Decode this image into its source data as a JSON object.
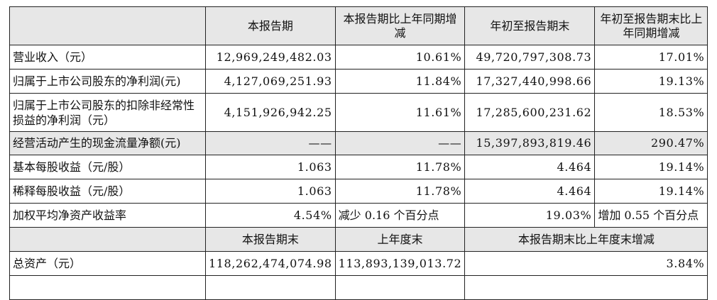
{
  "header1": {
    "col1": "本报告期",
    "col2": "本报告期比上年同期增减",
    "col3": "年初至报告期末",
    "col4": "年初至报告期末比上年同期增减"
  },
  "rows": [
    {
      "label": "营业收入（元）",
      "v1": "12,969,249,482.03",
      "v2": "10.61%",
      "v3": "49,720,797,308.73",
      "v4": "17.01%"
    },
    {
      "label": "归属于上市公司股东的净利润(元)",
      "v1": "4,127,069,251.93",
      "v2": "11.84%",
      "v3": "17,327,440,998.66",
      "v4": "19.13%"
    },
    {
      "label": "归属于上市公司股东的扣除非经常性损益的净利润（元）",
      "v1": "4,151,926,942.25",
      "v2": "11.61%",
      "v3": "17,285,600,231.62",
      "v4": "18.53%"
    },
    {
      "label": "经营活动产生的现金流量净额(元)",
      "v1": "——",
      "v2": "——",
      "v3": "15,397,893,819.46",
      "v4": "290.47%"
    },
    {
      "label": "基本每股收益（元/股）",
      "v1": "1.063",
      "v2": "11.78%",
      "v3": "4.464",
      "v4": "19.14%"
    },
    {
      "label": "稀释每股收益（元/股）",
      "v1": "1.063",
      "v2": "11.78%",
      "v3": "4.464",
      "v4": "19.14%"
    },
    {
      "label": "加权平均净资产收益率",
      "v1": "4.54%",
      "v2": "减少 0.16 个百分点",
      "v3": "19.03%",
      "v4": "增加 0.55 个百分点"
    }
  ],
  "header2": {
    "col1": "本报告期末",
    "col2": "上年度末",
    "col3": "本报告期末比上年度末增减"
  },
  "assets": {
    "label": "总资产（元）",
    "v1": "118,262,474,074.98",
    "v2": "113,893,139,013.72",
    "v3": "3.84%"
  }
}
